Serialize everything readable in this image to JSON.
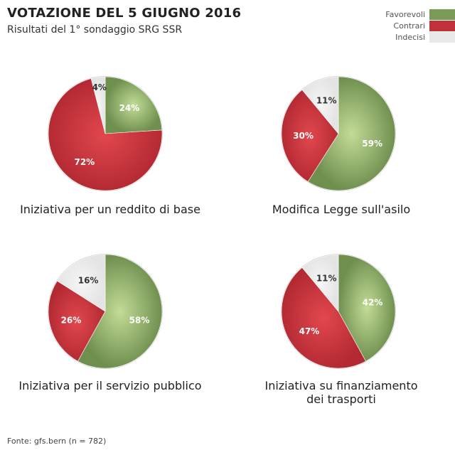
{
  "header": {
    "title": "VOTAZIONE DEL 5 GIUGNO 2016",
    "subtitle": "Risultati del 1° sondaggio SRG SSR"
  },
  "legend": [
    {
      "label": "Favorevoli",
      "color": "#7a9a58"
    },
    {
      "label": "Contrari",
      "color": "#c0313a"
    },
    {
      "label": "Indecisi",
      "color": "#e8e8e8"
    }
  ],
  "source": "Fonte: gfs.bern (n = 782)",
  "chart_data": [
    {
      "type": "pie",
      "title": "Iniziativa per un reddito di base",
      "categories": [
        "Favorevoli",
        "Contrari",
        "Indecisi"
      ],
      "values": [
        24,
        72,
        4
      ],
      "labels": [
        "24%",
        "72%",
        "4%"
      ]
    },
    {
      "type": "pie",
      "title": "Modifica Legge sull'asilo",
      "categories": [
        "Favorevoli",
        "Contrari",
        "Indecisi"
      ],
      "values": [
        59,
        30,
        11
      ],
      "labels": [
        "59%",
        "30%",
        "11%"
      ]
    },
    {
      "type": "pie",
      "title": "Iniziativa per il servizio pubblico",
      "categories": [
        "Favorevoli",
        "Contrari",
        "Indecisi"
      ],
      "values": [
        58,
        26,
        16
      ],
      "labels": [
        "58%",
        "26%",
        "16%"
      ]
    },
    {
      "type": "pie",
      "title": "Iniziativa su finanziamento dei trasporti",
      "title_lines": [
        "Iniziativa su finanziamento",
        "dei trasporti"
      ],
      "categories": [
        "Favorevoli",
        "Contrari",
        "Indecisi"
      ],
      "values": [
        42,
        47,
        11
      ],
      "labels": [
        "42%",
        "47%",
        "11%"
      ]
    }
  ]
}
